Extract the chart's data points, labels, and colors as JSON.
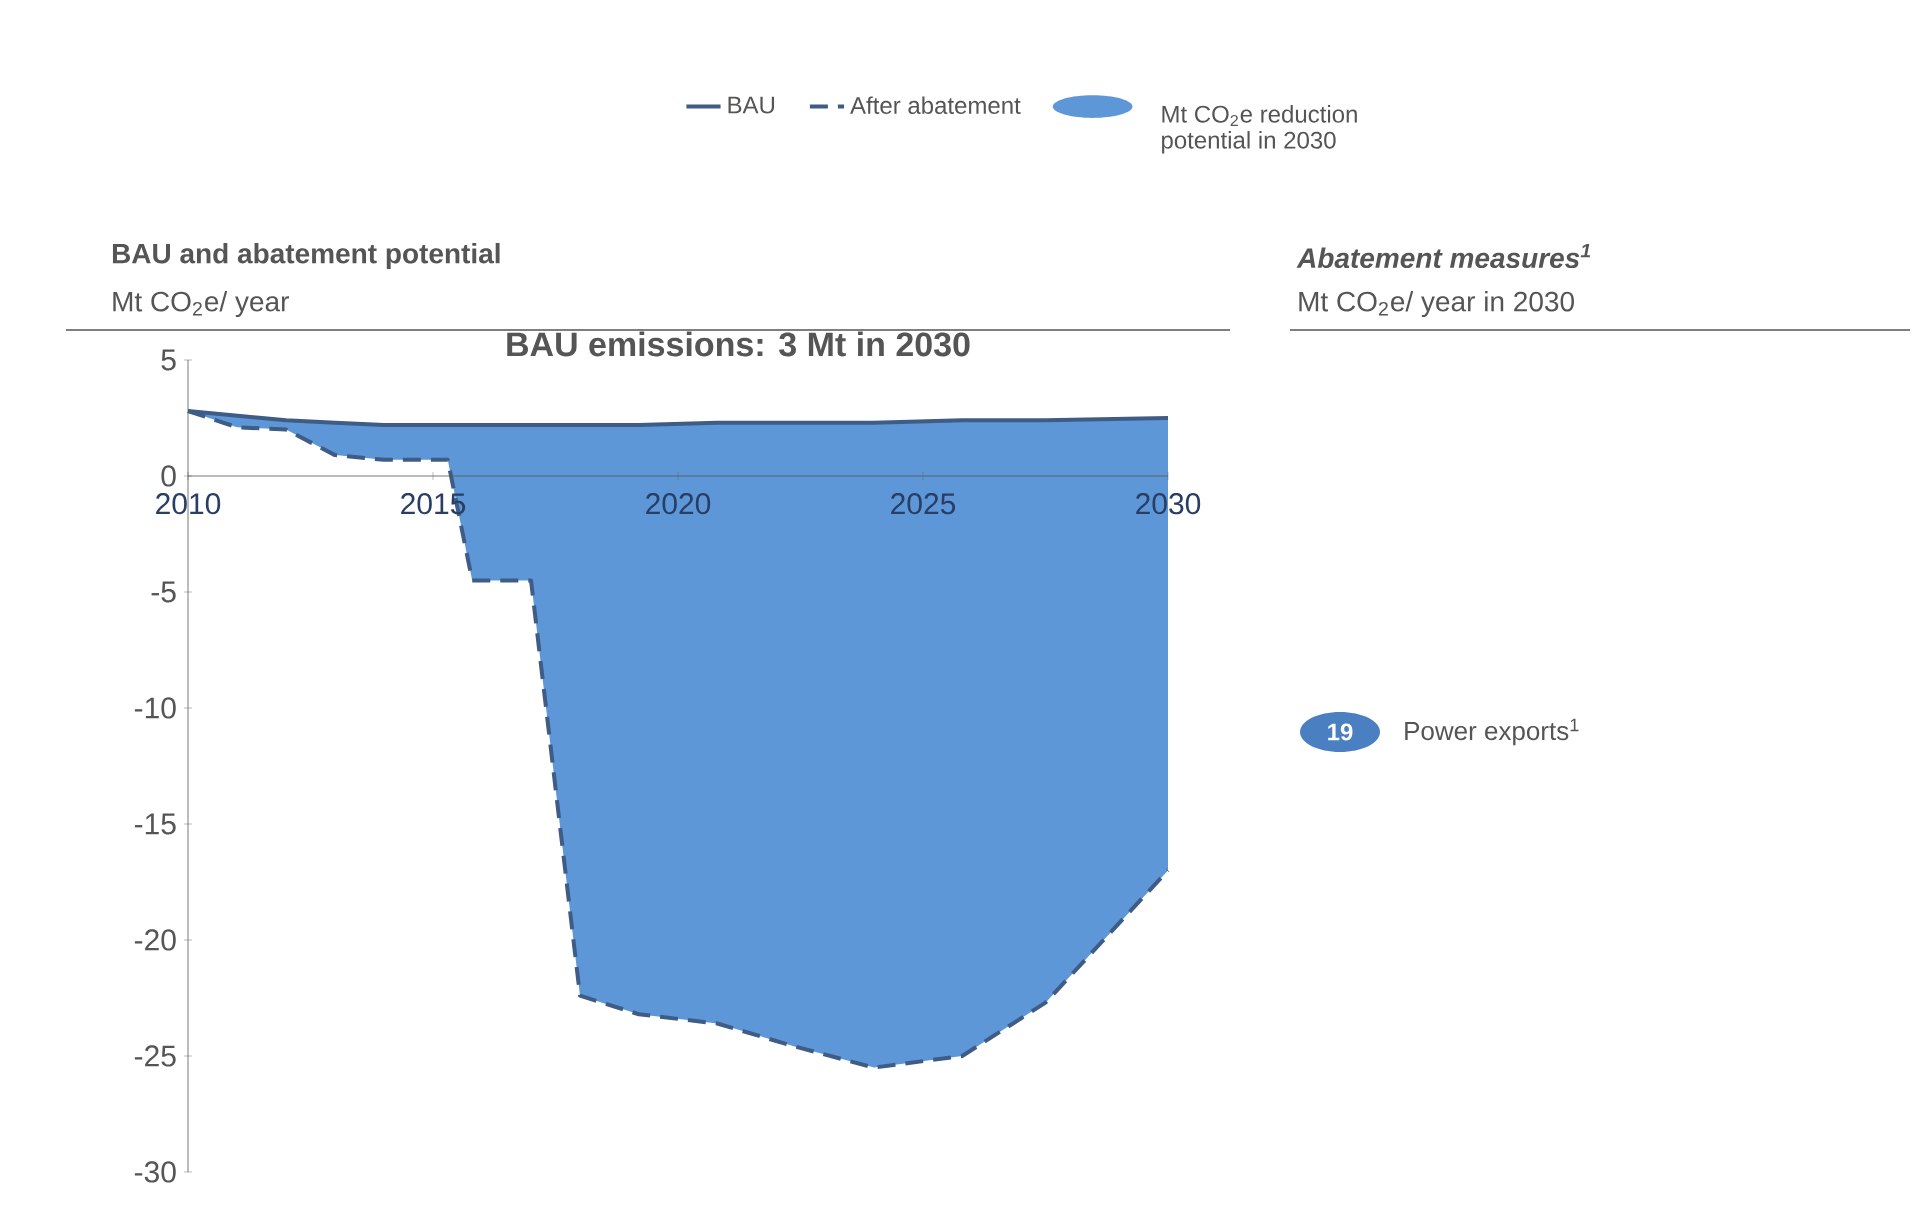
{
  "chart_data": [
    {
      "type": "line",
      "title": "BAU and abatement potential",
      "ylabel": "Mt CO$_{2}$e/ year",
      "annotations": [
        "BAU emissions: 3 Mt in 2030"
      ],
      "legend": "top",
      "x": [
        2010,
        2011,
        2012,
        2013,
        2014,
        2015.3,
        2015.8,
        2017,
        2018,
        2019.2,
        2020.8,
        2022.4,
        2024,
        2025.8,
        2027.5,
        2030
      ],
      "xlim": [
        2010,
        2030
      ],
      "xticks": [
        2010,
        2015,
        2020,
        2025,
        2030
      ],
      "ylim": [
        -30,
        5
      ],
      "yticks": [
        5,
        0,
        -5,
        -10,
        -15,
        -20,
        -25,
        -30
      ],
      "series": [
        {
          "name": "BAU",
          "color": "#3e5c85",
          "line_style": "solid",
          "values": [
            2.8,
            2.6,
            2.4,
            2.3,
            2.2,
            2.2,
            2.2,
            2.2,
            2.2,
            2.2,
            2.3,
            2.3,
            2.3,
            2.4,
            2.4,
            2.5
          ]
        },
        {
          "name": "After abatement",
          "color": "#3e5c85",
          "line_style": "dashed",
          "values": [
            2.8,
            2.1,
            2.0,
            0.9,
            0.7,
            0.7,
            -4.5,
            -4.5,
            -22.4,
            -23.2,
            -23.6,
            -24.6,
            -25.5,
            -25,
            -22.7,
            -17
          ],
          "lower": [
            2.8,
            2.1,
            2.0,
            0.9,
            0.7,
            0.7,
            -4.5,
            -4.5,
            -22.4,
            -23.2,
            -23.6,
            -24.6,
            -25.5,
            -25,
            -22.7,
            -17
          ],
          "upper": [
            2.8,
            2.6,
            2.4,
            2.3,
            2.2,
            2.2,
            2.2,
            2.2,
            2.2,
            2.2,
            2.3,
            2.3,
            2.3,
            2.4,
            2.4,
            2.5
          ]
        },
        {
          "type": "area",
          "name": "Mt CO$_{2}$e reduction potential in 2030",
          "color": "#5d97d8",
          "values": [
            null,
            null,
            null,
            null,
            null,
            null,
            null,
            null,
            null,
            null,
            null,
            null,
            null,
            null,
            null,
            null
          ]
        }
      ]
    },
    {
      "type": "other",
      "title": "Abatement measures$^{1}$",
      "subtitle": "Mt CO$_{2}$e/ year in 2030",
      "categories": [
        "Power exports$^{1}$"
      ],
      "values": [
        19
      ],
      "colors": [
        "#4a7fc1"
      ],
      "data_labels": true
    }
  ]
}
